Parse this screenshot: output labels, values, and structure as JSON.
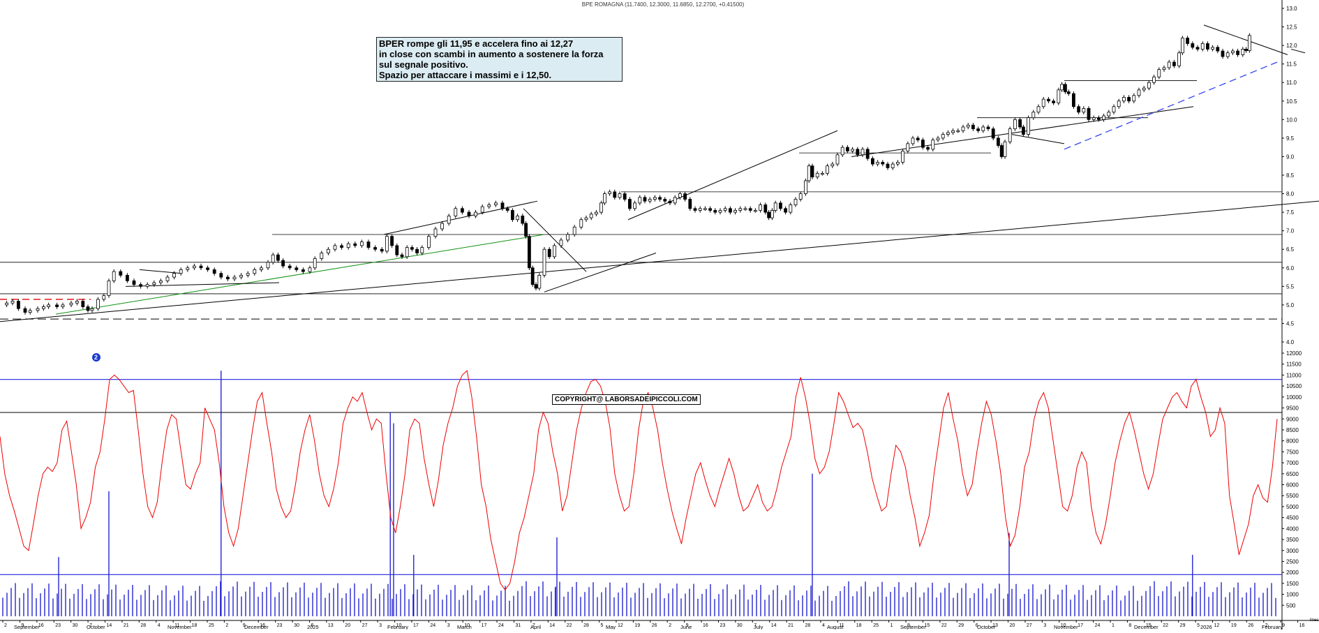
{
  "title": "BPE ROMAGNA (11.7400, 12.3000, 11.6850, 12.2700, +0.41500)",
  "annotation": {
    "lines": [
      "BPER rompe gli 11,95 e accelera fino ai 12,27",
      "in close con scambi in aumento a sostenere la forza",
      "sul segnale positivo.",
      "Spazio per attaccare i massimi e i 12,50."
    ]
  },
  "copyright": "COPYRIGHT@ LABORSADEIPICCOLI.COM",
  "badge": "2",
  "volume_unit": "lines",
  "colors": {
    "candles": "#000000",
    "volume_bars": "#0000cc",
    "oscillator": "#ee0000",
    "support_green": "#109010",
    "dash_red": "#e00000",
    "dash_blue": "#3344ee",
    "reference_lines": "#2222dd"
  },
  "chart_data": [
    {
      "type": "candlestick",
      "name": "price",
      "y_ticks": [
        "13.0",
        "12.5",
        "12.0",
        "11.5",
        "11.0",
        "10.5",
        "10.0",
        "9.5",
        "9.0",
        "8.5",
        "8.0",
        "7.5",
        "7.0",
        "6.5",
        "6.0",
        "5.5",
        "5.0",
        "4.5",
        "4.0"
      ],
      "ylim": [
        3.9,
        13.0
      ],
      "x_month_labels": [
        "September",
        "October",
        "November",
        "December",
        "2025",
        "February",
        "March",
        "April",
        "May",
        "June",
        "July",
        "August",
        "September",
        "October",
        "November",
        "December",
        "2026",
        "February"
      ],
      "x_day_labels": [
        "2",
        "9",
        "16",
        "23",
        "30",
        "7",
        "14",
        "21",
        "28",
        "4",
        "11",
        "18",
        "25",
        "2",
        "9",
        "16",
        "23",
        "30",
        "6",
        "13",
        "20",
        "27",
        "3",
        "10",
        "17",
        "24",
        "3",
        "10",
        "17",
        "24",
        "31",
        "7",
        "14",
        "22",
        "28",
        "5",
        "12",
        "19",
        "26",
        "2",
        "9",
        "16",
        "23",
        "30",
        "7",
        "14",
        "21",
        "28",
        "4",
        "11",
        "18",
        "25",
        "1",
        "8",
        "15",
        "22",
        "29",
        "6",
        "13",
        "20",
        "27",
        "3",
        "10",
        "17",
        "24",
        "1",
        "8",
        "15",
        "22",
        "29",
        "5",
        "12",
        "19",
        "26",
        "2",
        "9",
        "16"
      ],
      "close_path": [
        [
          0,
          5.0
        ],
        [
          8,
          5.05
        ],
        [
          15,
          5.1
        ],
        [
          22,
          4.9
        ],
        [
          30,
          4.8
        ],
        [
          36,
          4.85
        ],
        [
          45,
          4.9
        ],
        [
          52,
          4.95
        ],
        [
          58,
          5.0
        ],
        [
          68,
          4.95
        ],
        [
          75,
          5.0
        ],
        [
          85,
          5.05
        ],
        [
          92,
          5.1
        ],
        [
          99,
          4.95
        ],
        [
          105,
          4.85
        ],
        [
          110,
          4.9
        ],
        [
          117,
          5.15
        ],
        [
          124,
          5.25
        ],
        [
          130,
          5.65
        ],
        [
          136,
          5.9
        ],
        [
          144,
          5.8
        ],
        [
          152,
          5.65
        ],
        [
          160,
          5.55
        ],
        [
          168,
          5.5
        ],
        [
          176,
          5.55
        ],
        [
          184,
          5.6
        ],
        [
          192,
          5.65
        ],
        [
          200,
          5.75
        ],
        [
          208,
          5.85
        ],
        [
          216,
          5.95
        ],
        [
          224,
          6.0
        ],
        [
          232,
          6.05
        ],
        [
          240,
          6.0
        ],
        [
          248,
          5.95
        ],
        [
          256,
          5.85
        ],
        [
          264,
          5.75
        ],
        [
          272,
          5.7
        ],
        [
          280,
          5.75
        ],
        [
          288,
          5.8
        ],
        [
          296,
          5.85
        ],
        [
          304,
          5.95
        ],
        [
          312,
          6.0
        ],
        [
          320,
          6.15
        ],
        [
          326,
          6.35
        ],
        [
          332,
          6.2
        ],
        [
          338,
          6.05
        ],
        [
          346,
          6.0
        ],
        [
          354,
          5.95
        ],
        [
          362,
          5.9
        ],
        [
          370,
          6.0
        ],
        [
          376,
          6.25
        ],
        [
          384,
          6.4
        ],
        [
          392,
          6.5
        ],
        [
          400,
          6.6
        ],
        [
          408,
          6.55
        ],
        [
          416,
          6.65
        ],
        [
          424,
          6.6
        ],
        [
          432,
          6.7
        ],
        [
          440,
          6.55
        ],
        [
          448,
          6.5
        ],
        [
          456,
          6.45
        ],
        [
          462,
          6.85
        ],
        [
          468,
          6.6
        ],
        [
          474,
          6.35
        ],
        [
          480,
          6.3
        ],
        [
          486,
          6.55
        ],
        [
          492,
          6.5
        ],
        [
          498,
          6.4
        ],
        [
          504,
          6.55
        ],
        [
          512,
          6.85
        ],
        [
          520,
          7.05
        ],
        [
          528,
          7.2
        ],
        [
          536,
          7.4
        ],
        [
          544,
          7.6
        ],
        [
          552,
          7.5
        ],
        [
          560,
          7.4
        ],
        [
          568,
          7.5
        ],
        [
          576,
          7.65
        ],
        [
          584,
          7.7
        ],
        [
          592,
          7.75
        ],
        [
          600,
          7.6
        ],
        [
          606,
          7.55
        ],
        [
          612,
          7.3
        ],
        [
          618,
          7.4
        ],
        [
          624,
          7.2
        ],
        [
          628,
          6.85
        ],
        [
          632,
          6.0
        ],
        [
          636,
          5.55
        ],
        [
          640,
          5.45
        ],
        [
          644,
          5.8
        ],
        [
          650,
          6.5
        ],
        [
          656,
          6.3
        ],
        [
          662,
          6.6
        ],
        [
          670,
          6.75
        ],
        [
          678,
          6.9
        ],
        [
          686,
          7.1
        ],
        [
          694,
          7.3
        ],
        [
          700,
          7.35
        ],
        [
          706,
          7.45
        ],
        [
          712,
          7.5
        ],
        [
          718,
          7.75
        ],
        [
          722,
          8.0
        ],
        [
          728,
          8.05
        ],
        [
          734,
          7.9
        ],
        [
          740,
          8.0
        ],
        [
          746,
          7.85
        ],
        [
          752,
          7.6
        ],
        [
          758,
          7.75
        ],
        [
          764,
          7.9
        ],
        [
          770,
          7.8
        ],
        [
          776,
          7.85
        ],
        [
          782,
          7.9
        ],
        [
          788,
          7.85
        ],
        [
          794,
          7.8
        ],
        [
          800,
          7.75
        ],
        [
          806,
          7.9
        ],
        [
          812,
          8.0
        ],
        [
          818,
          7.85
        ],
        [
          824,
          7.6
        ],
        [
          830,
          7.55
        ],
        [
          836,
          7.6
        ],
        [
          842,
          7.6
        ],
        [
          848,
          7.55
        ],
        [
          854,
          7.5
        ],
        [
          860,
          7.55
        ],
        [
          866,
          7.6
        ],
        [
          872,
          7.5
        ],
        [
          878,
          7.55
        ],
        [
          884,
          7.6
        ],
        [
          890,
          7.6
        ],
        [
          896,
          7.55
        ],
        [
          902,
          7.55
        ],
        [
          908,
          7.7
        ],
        [
          914,
          7.5
        ],
        [
          918,
          7.35
        ],
        [
          922,
          7.55
        ],
        [
          926,
          7.75
        ],
        [
          932,
          7.6
        ],
        [
          938,
          7.5
        ],
        [
          944,
          7.7
        ],
        [
          950,
          7.85
        ],
        [
          956,
          8.0
        ],
        [
          962,
          8.35
        ],
        [
          966,
          8.75
        ],
        [
          970,
          8.45
        ],
        [
          976,
          8.55
        ],
        [
          982,
          8.55
        ],
        [
          988,
          8.75
        ],
        [
          994,
          8.8
        ],
        [
          1000,
          9.05
        ],
        [
          1006,
          9.25
        ],
        [
          1012,
          9.15
        ],
        [
          1018,
          9.2
        ],
        [
          1024,
          9.05
        ],
        [
          1030,
          9.2
        ],
        [
          1036,
          8.95
        ],
        [
          1042,
          8.8
        ],
        [
          1048,
          8.85
        ],
        [
          1054,
          8.8
        ],
        [
          1060,
          8.7
        ],
        [
          1066,
          8.8
        ],
        [
          1072,
          8.85
        ],
        [
          1078,
          9.15
        ],
        [
          1084,
          9.35
        ],
        [
          1090,
          9.5
        ],
        [
          1096,
          9.45
        ],
        [
          1102,
          9.25
        ],
        [
          1108,
          9.2
        ],
        [
          1114,
          9.45
        ],
        [
          1120,
          9.5
        ],
        [
          1126,
          9.6
        ],
        [
          1132,
          9.65
        ],
        [
          1138,
          9.7
        ],
        [
          1144,
          9.7
        ],
        [
          1150,
          9.8
        ],
        [
          1156,
          9.85
        ],
        [
          1162,
          9.75
        ],
        [
          1168,
          9.7
        ],
        [
          1174,
          9.8
        ],
        [
          1180,
          9.75
        ],
        [
          1186,
          9.5
        ],
        [
          1192,
          9.3
        ],
        [
          1196,
          9.0
        ],
        [
          1200,
          9.4
        ],
        [
          1206,
          9.75
        ],
        [
          1212,
          10.0
        ],
        [
          1218,
          9.8
        ],
        [
          1222,
          9.6
        ],
        [
          1228,
          10.05
        ],
        [
          1234,
          10.2
        ],
        [
          1240,
          10.35
        ],
        [
          1246,
          10.55
        ],
        [
          1252,
          10.5
        ],
        [
          1258,
          10.45
        ],
        [
          1264,
          10.8
        ],
        [
          1268,
          10.95
        ],
        [
          1272,
          10.75
        ],
        [
          1276,
          10.7
        ],
        [
          1282,
          10.35
        ],
        [
          1288,
          10.2
        ],
        [
          1294,
          10.3
        ],
        [
          1300,
          10.0
        ],
        [
          1306,
          10.05
        ],
        [
          1312,
          10.0
        ],
        [
          1318,
          10.1
        ],
        [
          1324,
          10.2
        ],
        [
          1330,
          10.35
        ],
        [
          1336,
          10.5
        ],
        [
          1342,
          10.6
        ],
        [
          1348,
          10.5
        ],
        [
          1354,
          10.65
        ],
        [
          1360,
          10.8
        ],
        [
          1366,
          10.85
        ],
        [
          1372,
          11.0
        ],
        [
          1378,
          11.15
        ],
        [
          1384,
          11.35
        ],
        [
          1390,
          11.4
        ],
        [
          1396,
          11.55
        ],
        [
          1402,
          11.45
        ],
        [
          1408,
          11.8
        ],
        [
          1412,
          12.2
        ],
        [
          1418,
          12.05
        ],
        [
          1424,
          11.95
        ],
        [
          1430,
          11.9
        ],
        [
          1436,
          12.05
        ],
        [
          1442,
          11.9
        ],
        [
          1448,
          11.95
        ],
        [
          1454,
          11.85
        ],
        [
          1460,
          11.7
        ],
        [
          1466,
          11.8
        ],
        [
          1472,
          11.85
        ],
        [
          1478,
          11.75
        ],
        [
          1484,
          11.9
        ],
        [
          1488,
          11.86
        ],
        [
          1492,
          12.27
        ]
      ]
    },
    {
      "type": "line",
      "name": "volume",
      "y_ticks": [
        "12000",
        "11500",
        "11000",
        "10500",
        "10000",
        "9500",
        "9000",
        "8500",
        "8000",
        "7500",
        "7000",
        "6500",
        "6000",
        "5500",
        "5000",
        "4500",
        "4000",
        "3500",
        "3000",
        "2500",
        "2000",
        "1500",
        "1000",
        "500"
      ],
      "ylim": [
        0,
        12200
      ],
      "reference_levels": [
        10800,
        1900
      ],
      "oscillator_values": [
        8200,
        6500,
        5500,
        4800,
        4000,
        3200,
        3000,
        4200,
        5500,
        6500,
        6800,
        6600,
        7000,
        8500,
        8900,
        7500,
        6000,
        4000,
        4500,
        5200,
        6800,
        7500,
        9000,
        10800,
        11000,
        10800,
        10500,
        10200,
        10300,
        8500,
        6500,
        5000,
        4500,
        5200,
        7000,
        8500,
        9200,
        9000,
        7500,
        6000,
        5800,
        6500,
        7000,
        9500,
        9000,
        8500,
        7000,
        5000,
        3800,
        3200,
        4000,
        5500,
        7000,
        8500,
        9800,
        10200,
        8800,
        7500,
        5800,
        5000,
        4500,
        4800,
        6000,
        7500,
        8500,
        9200,
        8000,
        6500,
        5500,
        5000,
        5800,
        7000,
        8800,
        9500,
        10000,
        9800,
        10200,
        9300,
        8500,
        9000,
        8800,
        6500,
        4500,
        3800,
        5000,
        6500,
        8500,
        9000,
        8800,
        7200,
        6000,
        5000,
        6200,
        7800,
        8800,
        9500,
        10500,
        11000,
        11200,
        10000,
        8200,
        6000,
        5000,
        3500,
        2500,
        1500,
        1200,
        1500,
        2500,
        3800,
        4500,
        5500,
        6500,
        8500,
        9300,
        8800,
        7500,
        6500,
        4800,
        5500,
        7000,
        8500,
        9500,
        10200,
        10700,
        10800,
        10500,
        9800,
        8600,
        6500,
        5500,
        4800,
        5000,
        6500,
        8500,
        9800,
        10200,
        9500,
        8500,
        7000,
        5800,
        4800,
        4000,
        3300,
        4500,
        5500,
        6500,
        7000,
        6200,
        5500,
        5000,
        5800,
        6500,
        7200,
        6500,
        5500,
        4800,
        5000,
        5500,
        6000,
        5200,
        4800,
        5000,
        5800,
        6800,
        7500,
        8200,
        10000,
        10900,
        10000,
        8800,
        7200,
        6500,
        6800,
        7500,
        8800,
        10200,
        9800,
        9200,
        8600,
        8800,
        8500,
        7500,
        6300,
        5500,
        4800,
        5000,
        6500,
        7800,
        7500,
        6800,
        5500,
        4500,
        3200,
        3800,
        4600,
        6500,
        8000,
        9500,
        10200,
        9000,
        8000,
        6500,
        5500,
        6000,
        7500,
        8800,
        9800,
        9200,
        8000,
        6500,
        4500,
        3200,
        3700,
        5000,
        6800,
        7500,
        9000,
        9800,
        10200,
        9500,
        8000,
        6500,
        5000,
        4800,
        5500,
        6800,
        7500,
        7000,
        5000,
        3800,
        3300,
        4200,
        5500,
        7000,
        8000,
        8800,
        9300,
        8500,
        7500,
        6500,
        5800,
        6500,
        7800,
        9000,
        9500,
        10000,
        10200,
        9800,
        9500,
        10500,
        10800,
        10000,
        9300,
        8200,
        8500,
        9500,
        8800,
        5500,
        4200,
        2800,
        3500,
        4200,
        5500,
        6000,
        5400,
        5200,
        6800,
        9000
      ],
      "volume_spikes": [
        [
          70,
          2700
        ],
        [
          130,
          5700
        ],
        [
          264,
          11200
        ],
        [
          466,
          9300
        ],
        [
          470,
          8800
        ],
        [
          494,
          2800
        ],
        [
          663,
          1300
        ],
        [
          665,
          3600
        ],
        [
          970,
          6500
        ],
        [
          1205,
          3800
        ],
        [
          1424,
          2800
        ]
      ]
    }
  ]
}
